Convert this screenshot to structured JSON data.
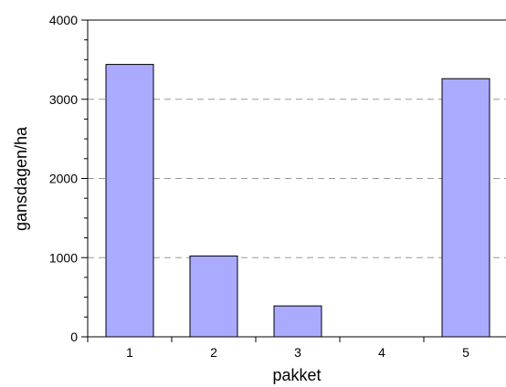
{
  "chart_data": {
    "type": "bar",
    "title": "",
    "xlabel": "pakket",
    "ylabel": "gansdagen/ha",
    "categories": [
      "1",
      "2",
      "3",
      "4",
      "5"
    ],
    "values": [
      3440,
      1020,
      390,
      0,
      3260
    ],
    "ylim": [
      0,
      4000
    ],
    "yticks": [
      "0",
      "1000",
      "2000",
      "3000",
      "4000"
    ],
    "grid": "horizontal dashed at 1000, 2000, 3000",
    "colors": {
      "bar_fill": "#aaaaff",
      "bar_stroke": "#000000",
      "grid": "#999999"
    }
  }
}
